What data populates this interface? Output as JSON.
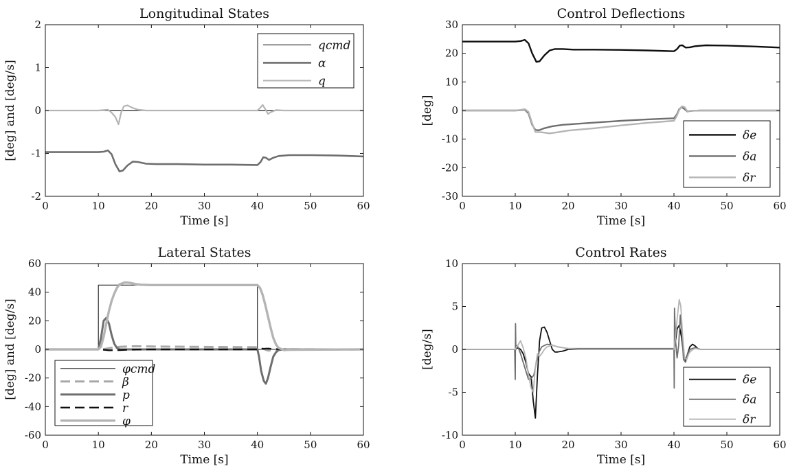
{
  "chart_data": [
    {
      "type": "line",
      "title": "Longitudinal States",
      "xlabel": "Time [s]",
      "ylabel": "[deg] and [deg/s]",
      "xlim": [
        0,
        60
      ],
      "ylim": [
        -2,
        2
      ],
      "xticks": [
        0,
        10,
        20,
        30,
        40,
        50,
        60
      ],
      "yticks": [
        -2,
        -1,
        0,
        1,
        2
      ],
      "ytick_labels": [
        "-2",
        "-1",
        "0",
        "1",
        "2"
      ],
      "legend_position": "top-right",
      "grid": false,
      "series": [
        {
          "name": "q_cmd",
          "label": "qcmd",
          "color": "#1a1a1a",
          "width": 1.2,
          "dash": "",
          "x": [
            0,
            60
          ],
          "y": [
            0,
            0
          ]
        },
        {
          "name": "alpha",
          "label": "α",
          "color": "#6e6e6e",
          "width": 2.6,
          "dash": "",
          "x": [
            0,
            10,
            11,
            11.8,
            12.5,
            13.2,
            14,
            14.6,
            15.5,
            16.5,
            17.5,
            19,
            21,
            25,
            30,
            35,
            40,
            40.6,
            41.1,
            41.6,
            42.2,
            43,
            44,
            46,
            50,
            55,
            60
          ],
          "y": [
            -0.97,
            -0.97,
            -0.96,
            -0.93,
            -1.02,
            -1.25,
            -1.42,
            -1.4,
            -1.28,
            -1.19,
            -1.2,
            -1.24,
            -1.25,
            -1.25,
            -1.26,
            -1.26,
            -1.27,
            -1.2,
            -1.09,
            -1.1,
            -1.15,
            -1.1,
            -1.06,
            -1.04,
            -1.04,
            -1.05,
            -1.07
          ]
        },
        {
          "name": "q",
          "label": "q",
          "color": "#b4b4b4",
          "width": 2.2,
          "dash": "",
          "x": [
            0,
            10,
            11,
            11.8,
            12.5,
            13.2,
            13.8,
            14.3,
            14.8,
            15.5,
            16.5,
            17.5,
            19,
            21,
            40,
            40.5,
            41,
            41.5,
            42,
            42.5,
            43.5,
            45,
            60
          ],
          "y": [
            0,
            0,
            0.01,
            0.02,
            -0.05,
            -0.15,
            -0.32,
            -0.05,
            0.1,
            0.12,
            0.06,
            0.02,
            0,
            0,
            0,
            0.06,
            0.13,
            0.03,
            -0.08,
            -0.04,
            0.01,
            0,
            0
          ]
        }
      ]
    },
    {
      "type": "line",
      "title": "Control Deflections",
      "xlabel": "Time [s]",
      "ylabel": "[deg]",
      "xlim": [
        0,
        60
      ],
      "ylim": [
        -30,
        30
      ],
      "xticks": [
        0,
        10,
        20,
        30,
        40,
        50,
        60
      ],
      "yticks": [
        -30,
        -20,
        -10,
        0,
        10,
        20,
        30
      ],
      "ytick_labels": [
        "-30",
        "-20",
        "-10",
        "0",
        "10",
        "20",
        "30"
      ],
      "legend_position": "bottom-right",
      "grid": false,
      "series": [
        {
          "name": "delta_e",
          "label": "δe",
          "color": "#0f0f0f",
          "width": 2.4,
          "dash": "",
          "x": [
            0,
            10,
            11,
            11.8,
            12.5,
            13.2,
            14,
            14.6,
            15.5,
            16.5,
            17.5,
            19,
            21,
            25,
            30,
            35,
            40,
            40.6,
            41.1,
            41.6,
            42.2,
            43,
            44,
            46,
            50,
            55,
            60
          ],
          "y": [
            24.1,
            24.1,
            24.3,
            24.7,
            23.5,
            20,
            17,
            17.2,
            19.3,
            21,
            21.5,
            21.5,
            21.3,
            21.3,
            21.2,
            21,
            20.7,
            21.5,
            22.7,
            22.8,
            22,
            22.1,
            22.5,
            22.8,
            22.7,
            22.4,
            22
          ]
        },
        {
          "name": "delta_a",
          "label": "δa",
          "color": "#6e6e6e",
          "width": 2.4,
          "dash": "",
          "x": [
            0,
            10,
            11,
            11.8,
            12.5,
            13.2,
            13.8,
            14.5,
            15.5,
            17,
            19,
            22,
            26,
            30,
            35,
            40,
            40.5,
            41,
            41.5,
            42,
            42.5,
            43.5,
            45,
            60
          ],
          "y": [
            0,
            0,
            0.1,
            0.3,
            -1,
            -5,
            -6.8,
            -6.9,
            -6.2,
            -5.5,
            -5,
            -4.6,
            -4.1,
            -3.6,
            -3.1,
            -2.7,
            -1.5,
            0.5,
            1.2,
            0.5,
            -0.3,
            -0.1,
            0,
            0
          ]
        },
        {
          "name": "delta_r",
          "label": "δr",
          "color": "#b4b4b4",
          "width": 2.4,
          "dash": "",
          "x": [
            0,
            10,
            11,
            11.8,
            12.5,
            13.2,
            13.8,
            15,
            16.5,
            18,
            20,
            25,
            30,
            35,
            40,
            40.5,
            41,
            41.5,
            42,
            42.5,
            43.5,
            45,
            60
          ],
          "y": [
            0,
            0,
            0.2,
            0.5,
            -0.5,
            -4.5,
            -7.5,
            -7.6,
            -8,
            -7.6,
            -7,
            -6.2,
            -5.2,
            -4.3,
            -3.6,
            -2,
            0.2,
            1.5,
            1.2,
            -0.2,
            -0.1,
            0,
            0
          ]
        }
      ]
    },
    {
      "type": "line",
      "title": "Lateral States",
      "xlabel": "Time [s]",
      "ylabel": "[deg] and [deg/s]",
      "xlim": [
        0,
        60
      ],
      "ylim": [
        -60,
        60
      ],
      "xticks": [
        0,
        10,
        20,
        30,
        40,
        50,
        60
      ],
      "yticks": [
        -60,
        -40,
        -20,
        0,
        20,
        40,
        60
      ],
      "ytick_labels": [
        "-60",
        "-40",
        "-20",
        "0",
        "20",
        "40",
        "60"
      ],
      "legend_position": "bottom-left",
      "grid": false,
      "series": [
        {
          "name": "phi_cmd",
          "label": "φcmd",
          "color": "#1a1a1a",
          "width": 1.1,
          "dash": "",
          "x": [
            0,
            10,
            10,
            40,
            40,
            60
          ],
          "y": [
            0,
            0,
            45,
            45,
            0,
            0
          ]
        },
        {
          "name": "beta",
          "label": "β",
          "color": "#a8a8a8",
          "width": 3,
          "dash": "14,7",
          "x": [
            0,
            10,
            11,
            12,
            14,
            17,
            20,
            40,
            41,
            42,
            44,
            60
          ],
          "y": [
            0,
            0,
            0.2,
            0.8,
            1.8,
            2.2,
            2,
            1.5,
            0.5,
            -0.8,
            -0.2,
            0
          ]
        },
        {
          "name": "p",
          "label": "p",
          "color": "#6e6e6e",
          "width": 3,
          "dash": "",
          "x": [
            0,
            10,
            10.5,
            11,
            11.5,
            12,
            12.5,
            13,
            13.5,
            14,
            15,
            16,
            40,
            40.3,
            40.7,
            41.2,
            41.6,
            42,
            42.5,
            43,
            43.5,
            44,
            45,
            60
          ],
          "y": [
            0,
            0,
            8,
            20,
            22,
            18,
            10,
            4,
            1,
            0,
            0,
            0,
            0,
            -5,
            -15,
            -22,
            -24,
            -20,
            -12,
            -5,
            -2,
            -0.5,
            0,
            0
          ]
        },
        {
          "name": "r",
          "label": "r",
          "color": "#0f0f0f",
          "width": 2.4,
          "dash": "14,7",
          "x": [
            0,
            10,
            11,
            12,
            14,
            16,
            20,
            40,
            41,
            42,
            43,
            45,
            60
          ],
          "y": [
            0,
            0,
            -0.3,
            -0.6,
            -0.5,
            -0.2,
            0,
            0,
            0.4,
            0.6,
            0.3,
            0,
            0
          ]
        },
        {
          "name": "phi",
          "label": "φ",
          "color": "#b4b4b4",
          "width": 3.4,
          "dash": "",
          "x": [
            0,
            10,
            10.5,
            11,
            11.5,
            12,
            12.5,
            13,
            13.5,
            14,
            15,
            16,
            17,
            18,
            20,
            25,
            40,
            40.5,
            41,
            41.5,
            42,
            42.5,
            43,
            43.5,
            44,
            45,
            46,
            60
          ],
          "y": [
            0,
            0,
            2,
            9,
            18,
            27,
            34,
            39,
            43,
            45.5,
            46.8,
            46.5,
            45.7,
            45.2,
            45,
            45,
            45,
            43,
            38,
            31,
            23,
            15,
            8,
            3.5,
            1,
            -0.5,
            -0.3,
            0
          ]
        }
      ]
    },
    {
      "type": "line",
      "title": "Control Rates",
      "xlabel": "Time [s]",
      "ylabel": "[deg/s]",
      "xlim": [
        0,
        60
      ],
      "ylim": [
        -10,
        10
      ],
      "xticks": [
        0,
        10,
        20,
        30,
        40,
        50,
        60
      ],
      "yticks": [
        -10,
        -5,
        0,
        5,
        10
      ],
      "ytick_labels": [
        "-10",
        "-5",
        "0",
        "5",
        "10"
      ],
      "legend_position": "bottom-right",
      "grid": false,
      "series": [
        {
          "name": "delta_e_dot",
          "label": "δ̇e",
          "color": "#0f0f0f",
          "width": 1.8,
          "dash": "",
          "x": [
            0,
            10,
            10.5,
            11,
            11.5,
            12,
            12.5,
            13,
            13.4,
            13.8,
            14.2,
            14.6,
            15,
            15.5,
            16,
            16.5,
            17,
            17.5,
            18,
            19,
            20,
            22,
            40,
            40.3,
            40.6,
            41,
            41.4,
            41.8,
            42.2,
            42.6,
            43,
            43.5,
            44,
            44.5,
            45,
            46,
            60
          ],
          "y": [
            0,
            0,
            0.2,
            0,
            -0.5,
            -1.5,
            -2.8,
            -3.2,
            -6,
            -8,
            -3,
            1,
            2.5,
            2.6,
            2,
            1,
            0,
            -0.3,
            -0.3,
            -0.2,
            0,
            0,
            0,
            1,
            2.4,
            2.8,
            1.5,
            -0.5,
            -1.3,
            -0.5,
            0.3,
            0.6,
            0.4,
            0.1,
            0,
            0,
            0
          ]
        },
        {
          "name": "delta_a_dot",
          "label": "δ̇a",
          "color": "#6e6e6e",
          "width": 1.8,
          "dash": "",
          "x": [
            0,
            9.9,
            10,
            10.05,
            10.1,
            10.5,
            11,
            11.5,
            12,
            12.5,
            13,
            13.5,
            14,
            14.5,
            15,
            16,
            17,
            18,
            19,
            20,
            25,
            30,
            40,
            40.05,
            40.1,
            40.3,
            40.6,
            40.9,
            41.2,
            41.5,
            41.8,
            42.2,
            42.6,
            43,
            44,
            45,
            60
          ],
          "y": [
            0,
            0,
            -3.5,
            3,
            0.5,
            0.3,
            -0.5,
            -1.5,
            -2.5,
            -3.5,
            -3.4,
            -3,
            -1.5,
            -0.3,
            0.3,
            0.6,
            0.5,
            0.3,
            0.2,
            0.1,
            0.1,
            0.1,
            0.1,
            -4.5,
            4.8,
            1,
            -1,
            0.5,
            4,
            2,
            -1.2,
            -1.5,
            -0.6,
            0,
            0.2,
            0,
            0
          ]
        },
        {
          "name": "delta_r_dot",
          "label": "δ̇r",
          "color": "#b4b4b4",
          "width": 1.8,
          "dash": "",
          "x": [
            0,
            10,
            10.5,
            11,
            11.5,
            12,
            12.5,
            13,
            13.4,
            13.8,
            14.2,
            14.6,
            15,
            15.5,
            16,
            17,
            18,
            19,
            20,
            22,
            40,
            40.3,
            40.6,
            41,
            41.3,
            41.6,
            42,
            42.4,
            42.8,
            43.2,
            43.6,
            44,
            45,
            60
          ],
          "y": [
            0,
            0,
            0.5,
            1,
            0.2,
            -1,
            -3,
            -4.5,
            -5,
            -2,
            -0.5,
            -0.8,
            -0.5,
            0,
            0.3,
            0.5,
            0.3,
            0.2,
            0.1,
            0,
            0,
            1.5,
            3.5,
            5.8,
            5,
            2,
            -1,
            -1.2,
            -0.5,
            -0.2,
            0,
            0.1,
            0,
            0
          ]
        }
      ]
    }
  ]
}
